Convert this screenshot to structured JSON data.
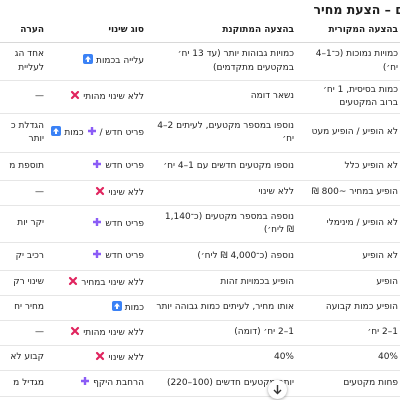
{
  "header": {
    "title": "ם – הצעת מחיר"
  },
  "table": {
    "columns": [
      "בהצעה המקורית",
      "בהצעה המתוקנת",
      "סוג שינוי",
      "הערה"
    ],
    "rows": [
      {
        "original": "כמויות נמוכות (כ־1–4 יח׳)",
        "revised": "כמויות גבוהות יותר (עד 13 יח׳ במקטעים מתקדמים)",
        "change": "עלייה בכמות",
        "note": [
          "אחד הג",
          "לעליית"
        ]
      },
      {
        "original": "כמות בסיסית, 1 יח׳ ברוב המקטעים",
        "revised": "נשאר דומה",
        "change": "ללא שינוי מהותי",
        "note": "—"
      },
      {
        "original": "לא הופיע / הופיע מעט",
        "revised": "נוספו במספר מקטעים, לעיתים 2–4 יח׳",
        "change": "פריט חדש /",
        "change_extra": "כמות",
        "note": [
          "הגדלת כ",
          "יותר"
        ]
      },
      {
        "original": "לא הופיע כלל",
        "revised": "נוספו מקטעים חדשים עם 1–4 יח׳",
        "change": "פריט חדש",
        "note": "תוספת מ"
      },
      {
        "original": "הופיע במחיר ~800 ₪",
        "revised": "ללא שינוי",
        "change": "ללא שינוי",
        "note": "—"
      },
      {
        "original": "לא הופיע / מינימלי",
        "revised": "נוספה במספר מקטעים (כ־1,140 ₪ ליח׳)",
        "change": "פריט חדש",
        "note": "יקר יות"
      },
      {
        "original": "לא הופיע",
        "revised": "נוספה (כ־4,000 ₪ ליח׳)",
        "change": "פריט חדש",
        "note": "רכיב יק"
      },
      {
        "original": "הופיע",
        "revised": "הופיע בכמויות זהות",
        "change": "ללא שינוי במחיר",
        "note": "שינוי רק"
      },
      {
        "original": "הופיע כמות קבועה",
        "revised": "אותו מחיר, לעיתים כמות גבוהה יותר",
        "change": "כמות",
        "note": "מחיר יח"
      },
      {
        "original": "1–2 יח׳",
        "revised": "1–2 יח׳ (דומה)",
        "change": "ללא שינוי מהותי",
        "note": "—"
      },
      {
        "original": "40%",
        "revised": "40%",
        "change": "ללא שינוי",
        "note": "קבוע לא"
      },
      {
        "original": "פחות מקטעים",
        "revised": "יותר מקטעים חדשים (100–220)",
        "change": "הרחבת היקף",
        "note": "מגדיל מ"
      }
    ]
  }
}
